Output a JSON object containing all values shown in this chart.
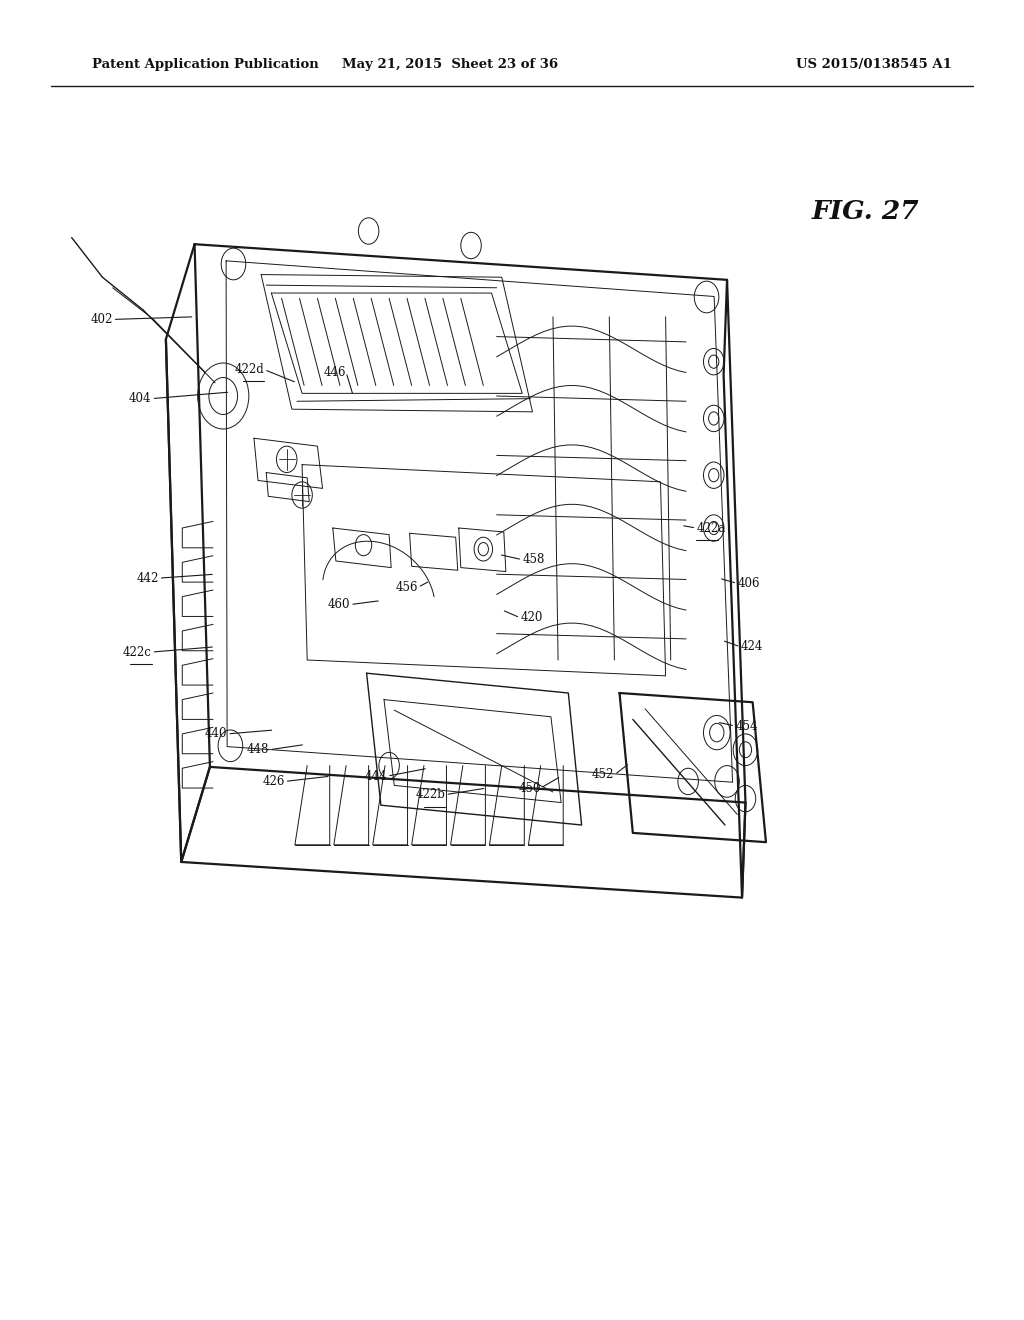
{
  "background_color": "#ffffff",
  "header_left": "Patent Application Publication",
  "header_mid": "May 21, 2015  Sheet 23 of 36",
  "header_right": "US 2015/0138545 A1",
  "fig_label": "FIG. 27",
  "line_color": "#1a1a1a"
}
